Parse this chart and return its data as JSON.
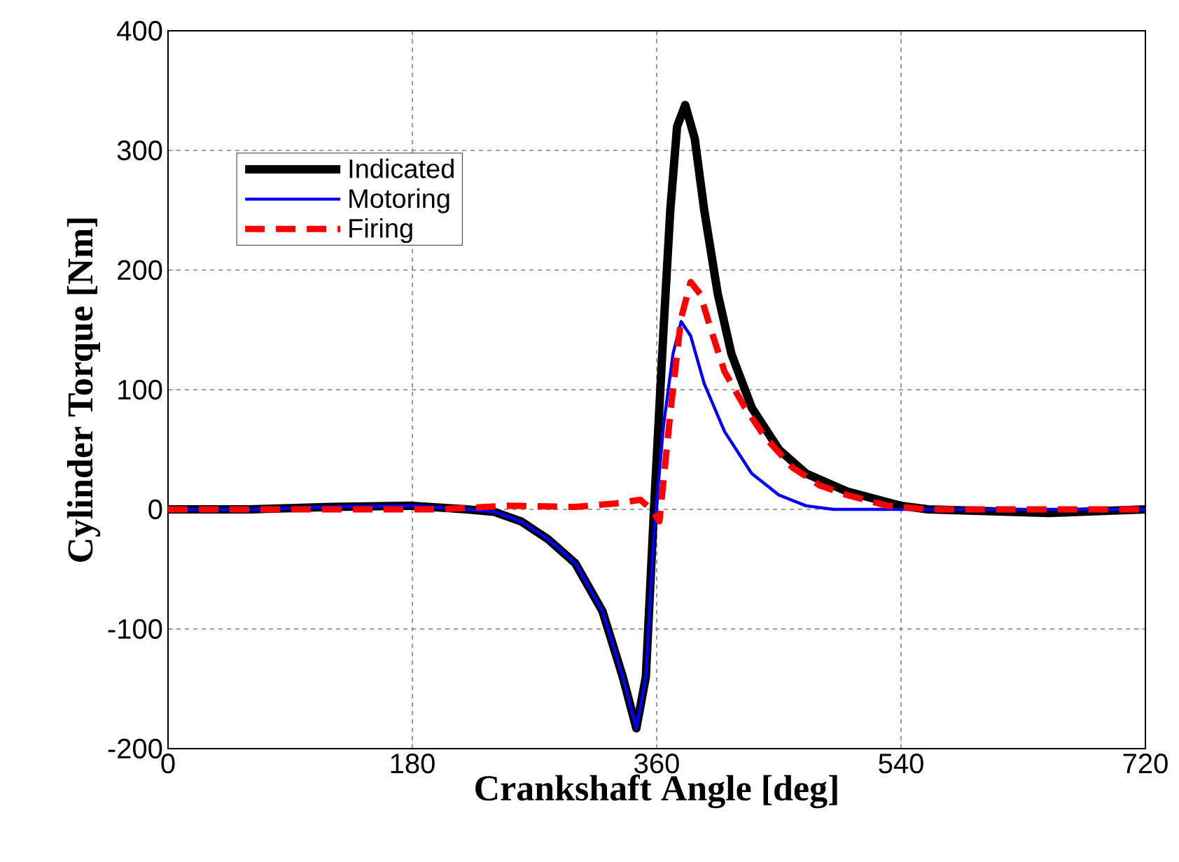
{
  "chart_data": {
    "type": "line",
    "xlabel": "Crankshaft Angle [deg]",
    "ylabel": "Cylinder Torque [Nm]",
    "xlim": [
      0,
      720
    ],
    "ylim": [
      -200,
      400
    ],
    "xticks": [
      0,
      180,
      360,
      540,
      720
    ],
    "yticks": [
      -200,
      -100,
      0,
      100,
      200,
      300,
      400
    ],
    "grid": true,
    "legend": "top left",
    "series": [
      {
        "name": "Indicated",
        "color": "#000000",
        "line_style": "solid",
        "x": [
          0,
          60,
          120,
          180,
          220,
          240,
          260,
          280,
          300,
          320,
          335,
          345,
          352,
          358,
          365,
          370,
          375,
          381,
          388,
          395,
          405,
          415,
          430,
          450,
          470,
          500,
          540,
          560,
          650,
          720
        ],
        "values": [
          0,
          0,
          2,
          3,
          0,
          -2,
          -10,
          -25,
          -45,
          -85,
          -140,
          -183,
          -140,
          0,
          150,
          250,
          320,
          338,
          310,
          250,
          180,
          130,
          85,
          50,
          30,
          15,
          3,
          0,
          -3,
          0
        ]
      },
      {
        "name": "Motoring",
        "color": "#0000ff",
        "line_style": "solid",
        "x": [
          0,
          60,
          120,
          180,
          220,
          240,
          260,
          280,
          300,
          320,
          335,
          345,
          352,
          358,
          365,
          372,
          378,
          385,
          395,
          410,
          430,
          450,
          470,
          490,
          720
        ],
        "values": [
          0,
          0,
          2,
          3,
          0,
          -2,
          -10,
          -25,
          -45,
          -85,
          -140,
          -183,
          -140,
          -20,
          70,
          130,
          157,
          145,
          105,
          65,
          30,
          12,
          3,
          0,
          0
        ]
      },
      {
        "name": "Firing",
        "color": "#ff0000",
        "line_style": "dashed",
        "x": [
          0,
          100,
          200,
          250,
          300,
          330,
          348,
          356,
          362,
          370,
          378,
          385,
          392,
          400,
          410,
          425,
          440,
          460,
          480,
          500,
          530,
          560,
          720
        ],
        "values": [
          0,
          0,
          0,
          3,
          2,
          5,
          8,
          0,
          -10,
          80,
          160,
          190,
          180,
          150,
          115,
          85,
          60,
          35,
          20,
          12,
          3,
          0,
          0
        ]
      }
    ]
  }
}
